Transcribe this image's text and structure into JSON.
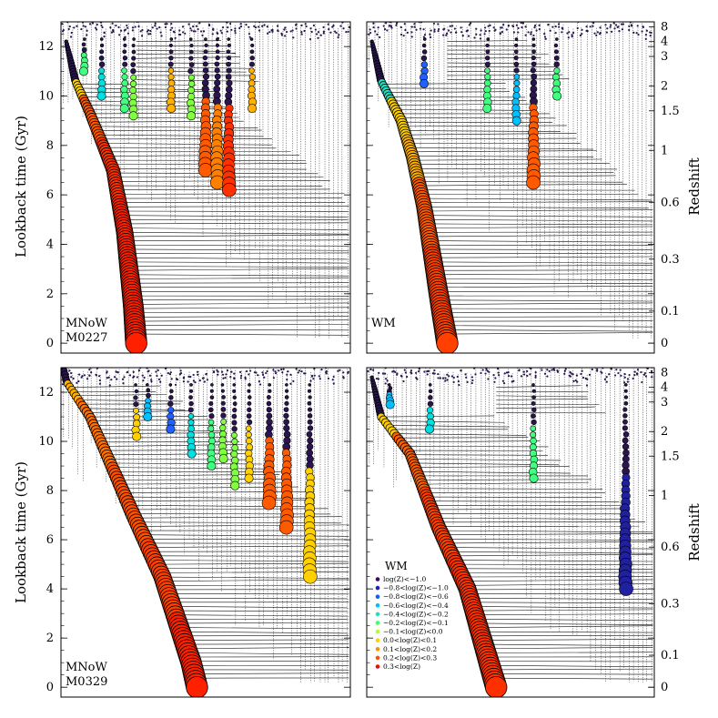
{
  "figure": {
    "ylabel_left": "Lookback time (Gyr)",
    "ylabel_right": "Redshift"
  },
  "chart_data": [
    {
      "type": "scatter",
      "panel": "top-left",
      "label_lines": [
        "MNoW",
        "M0227"
      ],
      "ylim": [
        -0.4,
        13.0
      ],
      "yticks": [
        0,
        2,
        4,
        6,
        8,
        10,
        12
      ],
      "right_ticks": [
        {
          "z": "8",
          "t": 12.8
        },
        {
          "z": "4",
          "t": 12.2
        },
        {
          "z": "3",
          "t": 11.6
        },
        {
          "z": "2",
          "t": 10.4
        },
        {
          "z": "1.5",
          "t": 9.4
        },
        {
          "z": "1",
          "t": 7.8
        },
        {
          "z": "0.6",
          "t": 5.7
        },
        {
          "z": "0.3",
          "t": 3.4
        },
        {
          "z": "0.1",
          "t": 1.3
        },
        {
          "z": "0",
          "t": 0.0
        }
      ],
      "main_branch": [
        {
          "x": 0.05,
          "t": 10.6,
          "color": "#ffd000"
        },
        {
          "x": 0.1,
          "t": 9.3,
          "color": "#ff5a00"
        },
        {
          "x": 0.18,
          "t": 7.0,
          "color": "#ff3000"
        },
        {
          "x": 0.22,
          "t": 4.5,
          "color": "#ff2000"
        },
        {
          "x": 0.25,
          "t": 1.5,
          "color": "#ff2000"
        },
        {
          "x": 0.26,
          "t": 0.0,
          "color": "#ff2000"
        }
      ],
      "side_branches": [
        {
          "x": 0.08,
          "t_end": 11.0,
          "color": "#40ff80"
        },
        {
          "x": 0.14,
          "t_end": 10.0,
          "color": "#00e0e0"
        },
        {
          "x": 0.22,
          "t_end": 9.5,
          "color": "#40ff80"
        },
        {
          "x": 0.25,
          "t_end": 9.2,
          "color": "#80ff40"
        },
        {
          "x": 0.38,
          "t_end": 9.5,
          "color": "#ffb000"
        },
        {
          "x": 0.45,
          "t_end": 9.2,
          "color": "#80ff40"
        },
        {
          "x": 0.5,
          "t_end": 7.0,
          "color": "#ff5a00"
        },
        {
          "x": 0.54,
          "t_end": 6.5,
          "color": "#ff8000"
        },
        {
          "x": 0.58,
          "t_end": 6.2,
          "color": "#ff3000"
        },
        {
          "x": 0.66,
          "t_end": 9.5,
          "color": "#ffb000"
        }
      ]
    },
    {
      "type": "scatter",
      "panel": "top-right",
      "label_lines": [
        "WM"
      ],
      "ylim": [
        -0.4,
        13.0
      ],
      "yticks": [
        0,
        2,
        4,
        6,
        8,
        10,
        12
      ],
      "right_ticks": [
        {
          "z": "8",
          "t": 12.8
        },
        {
          "z": "4",
          "t": 12.2
        },
        {
          "z": "3",
          "t": 11.6
        },
        {
          "z": "2",
          "t": 10.4
        },
        {
          "z": "1.5",
          "t": 9.4
        },
        {
          "z": "1",
          "t": 7.8
        },
        {
          "z": "0.6",
          "t": 5.7
        },
        {
          "z": "0.3",
          "t": 3.4
        },
        {
          "z": "0.1",
          "t": 1.3
        },
        {
          "z": "0",
          "t": 0.0
        }
      ],
      "main_branch": [
        {
          "x": 0.05,
          "t": 10.6,
          "color": "#20e0c0"
        },
        {
          "x": 0.12,
          "t": 9.0,
          "color": "#ffd000"
        },
        {
          "x": 0.16,
          "t": 7.5,
          "color": "#ffb000"
        },
        {
          "x": 0.2,
          "t": 5.5,
          "color": "#ff5a00"
        },
        {
          "x": 0.25,
          "t": 2.0,
          "color": "#ff4000"
        },
        {
          "x": 0.28,
          "t": 0.0,
          "color": "#ff4000"
        }
      ],
      "side_branches": [
        {
          "x": 0.2,
          "t_end": 10.5,
          "color": "#2060ff"
        },
        {
          "x": 0.42,
          "t_end": 9.5,
          "color": "#40ff80"
        },
        {
          "x": 0.52,
          "t_end": 9.0,
          "color": "#00c0ff"
        },
        {
          "x": 0.58,
          "t_end": 6.5,
          "color": "#ff5a00"
        },
        {
          "x": 0.66,
          "t_end": 10.0,
          "color": "#40ff80"
        }
      ]
    },
    {
      "type": "scatter",
      "panel": "bottom-left",
      "label_lines": [
        "MNoW",
        "M0329"
      ],
      "ylim": [
        -0.4,
        13.0
      ],
      "yticks": [
        0,
        2,
        4,
        6,
        8,
        10,
        12
      ],
      "right_ticks": [
        {
          "z": "8",
          "t": 12.8
        },
        {
          "z": "4",
          "t": 12.2
        },
        {
          "z": "3",
          "t": 11.6
        },
        {
          "z": "2",
          "t": 10.4
        },
        {
          "z": "1.5",
          "t": 9.4
        },
        {
          "z": "1",
          "t": 7.8
        },
        {
          "z": "0.6",
          "t": 5.7
        },
        {
          "z": "0.3",
          "t": 3.4
        },
        {
          "z": "0.1",
          "t": 1.3
        },
        {
          "z": "0",
          "t": 0.0
        }
      ],
      "main_branch": [
        {
          "x": 0.02,
          "t": 12.4,
          "color": "#ffb000"
        },
        {
          "x": 0.1,
          "t": 11.0,
          "color": "#ff7000"
        },
        {
          "x": 0.25,
          "t": 7.0,
          "color": "#ff5000"
        },
        {
          "x": 0.35,
          "t": 4.5,
          "color": "#ff4000"
        },
        {
          "x": 0.45,
          "t": 1.0,
          "color": "#ff2000"
        },
        {
          "x": 0.47,
          "t": 0.0,
          "color": "#ff2000"
        }
      ],
      "side_branches": [
        {
          "x": 0.26,
          "t_end": 10.2,
          "color": "#ffd000"
        },
        {
          "x": 0.3,
          "t_end": 11.0,
          "color": "#00c0ff"
        },
        {
          "x": 0.38,
          "t_end": 10.5,
          "color": "#2060ff"
        },
        {
          "x": 0.45,
          "t_end": 9.5,
          "color": "#00e0e0"
        },
        {
          "x": 0.52,
          "t_end": 9.0,
          "color": "#40ff80"
        },
        {
          "x": 0.56,
          "t_end": 9.3,
          "color": "#80ff40"
        },
        {
          "x": 0.6,
          "t_end": 8.2,
          "color": "#80ff40"
        },
        {
          "x": 0.65,
          "t_end": 8.5,
          "color": "#ffd000"
        },
        {
          "x": 0.72,
          "t_end": 7.5,
          "color": "#ff5a00"
        },
        {
          "x": 0.78,
          "t_end": 6.5,
          "color": "#ff5a00"
        },
        {
          "x": 0.86,
          "t_end": 4.5,
          "color": "#ffd000"
        }
      ]
    },
    {
      "type": "scatter",
      "panel": "bottom-right",
      "label_lines": [],
      "ylim": [
        -0.4,
        13.0
      ],
      "yticks": [
        0,
        2,
        4,
        6,
        8,
        10,
        12
      ],
      "right_ticks": [
        {
          "z": "8",
          "t": 12.8
        },
        {
          "z": "4",
          "t": 12.2
        },
        {
          "z": "3",
          "t": 11.6
        },
        {
          "z": "2",
          "t": 10.4
        },
        {
          "z": "1.5",
          "t": 9.4
        },
        {
          "z": "1",
          "t": 7.8
        },
        {
          "z": "0.6",
          "t": 5.7
        },
        {
          "z": "0.3",
          "t": 3.4
        },
        {
          "z": "0.1",
          "t": 1.3
        },
        {
          "z": "0",
          "t": 0.0
        }
      ],
      "main_branch": [
        {
          "x": 0.05,
          "t": 11.0,
          "color": "#ffd000"
        },
        {
          "x": 0.15,
          "t": 9.5,
          "color": "#ff6000"
        },
        {
          "x": 0.25,
          "t": 6.5,
          "color": "#ff4000"
        },
        {
          "x": 0.35,
          "t": 4.0,
          "color": "#ff3000"
        },
        {
          "x": 0.42,
          "t": 1.2,
          "color": "#ff3000"
        },
        {
          "x": 0.45,
          "t": 0.0,
          "color": "#ff3000"
        }
      ],
      "side_branches": [
        {
          "x": 0.08,
          "t_end": 11.5,
          "color": "#00c0ff"
        },
        {
          "x": 0.22,
          "t_end": 10.5,
          "color": "#00e0e0"
        },
        {
          "x": 0.58,
          "t_end": 8.5,
          "color": "#40ff80"
        },
        {
          "x": 0.9,
          "t_end": 4.0,
          "color": "#2020a0"
        }
      ],
      "legend": {
        "title": "WM",
        "entries": [
          {
            "label": "log(Z)<−1.0",
            "color": "#3a0a6e"
          },
          {
            "label": "−0.8<log(Z)<−1.0",
            "color": "#2020c0"
          },
          {
            "label": "−0.8<log(Z)<−0.6",
            "color": "#1060ff"
          },
          {
            "label": "−0.6<log(Z)<−0.4",
            "color": "#00c0ff"
          },
          {
            "label": "−0.4<log(Z)<−0.2",
            "color": "#20e0c0"
          },
          {
            "label": "−0.2<log(Z)<−0.1",
            "color": "#40ff60"
          },
          {
            "label": "−0.1<log(Z)<0.0",
            "color": "#b0ff30"
          },
          {
            "label": "0.0<log(Z)<0.1",
            "color": "#ffd000"
          },
          {
            "label": "0.1<log(Z)<0.2",
            "color": "#ff9000"
          },
          {
            "label": "0.2<log(Z)<0.3",
            "color": "#ff5000"
          },
          {
            "label": "0.3<log(Z)",
            "color": "#e01010"
          }
        ]
      }
    }
  ]
}
